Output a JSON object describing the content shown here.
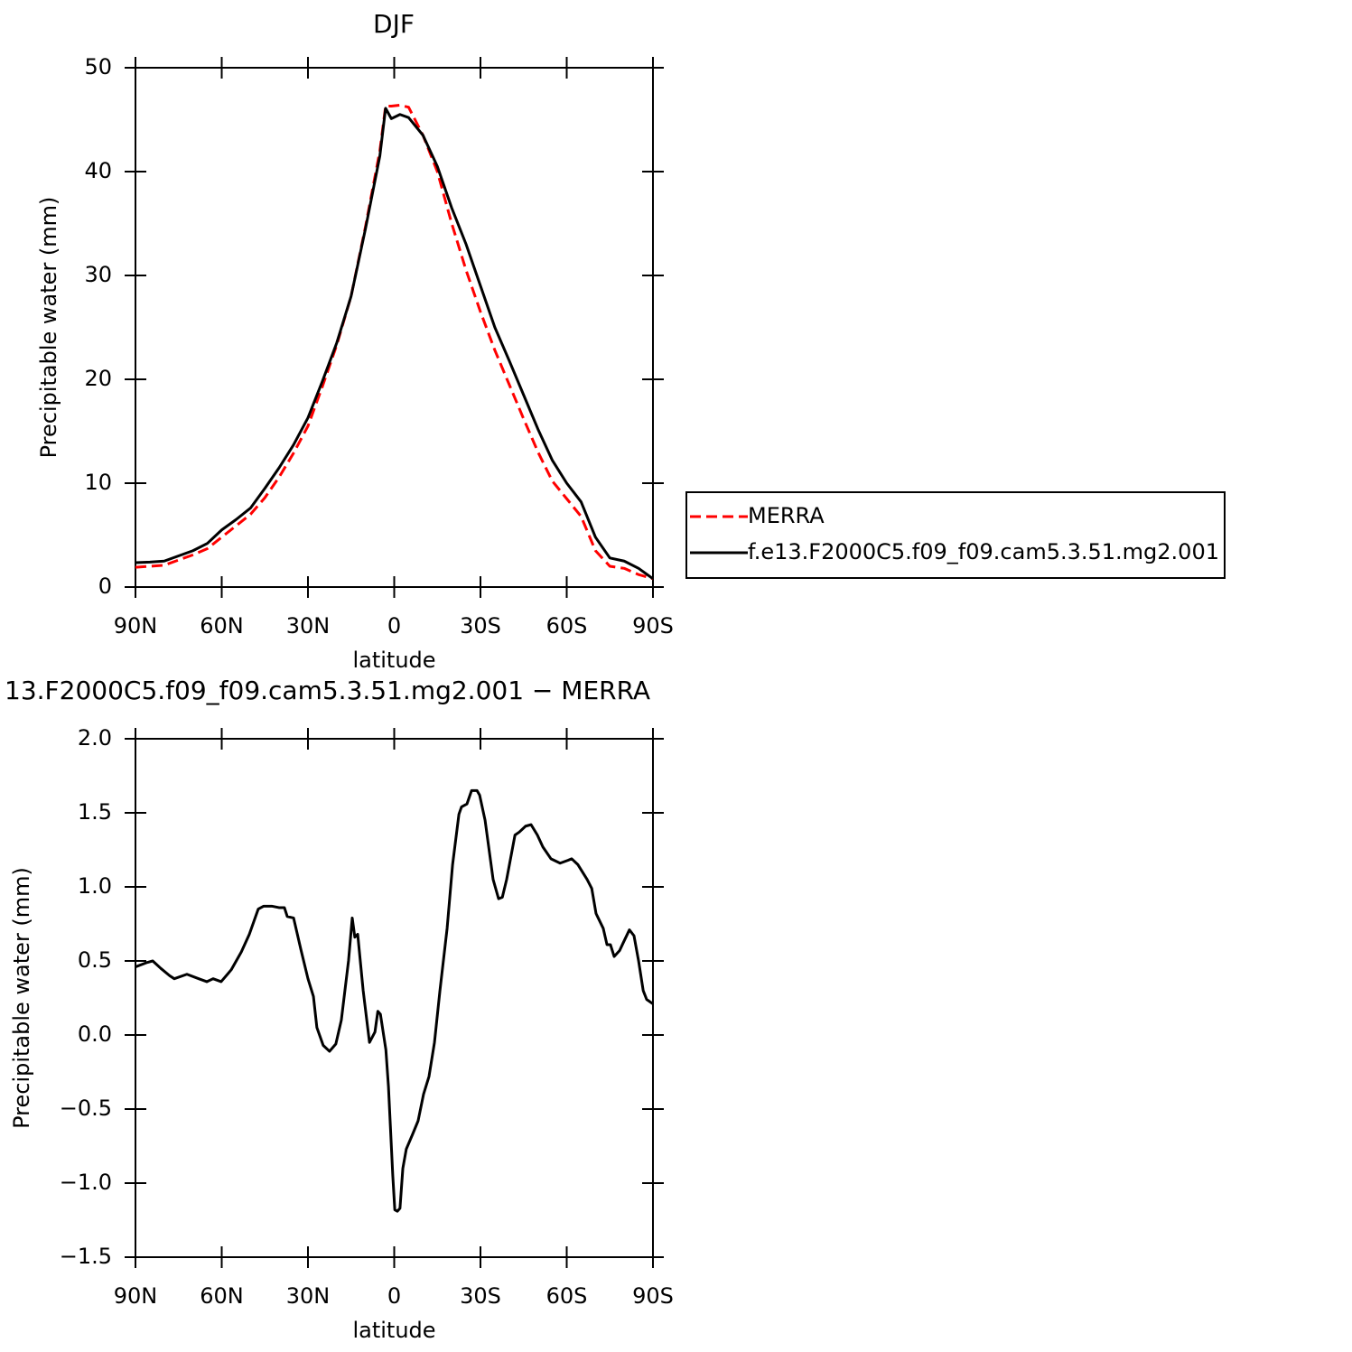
{
  "chart_data": [
    {
      "type": "line",
      "title": "DJF",
      "xlabel": "latitude",
      "ylabel": "Precipitable water (mm)",
      "x": [
        90,
        85,
        80,
        75,
        70,
        65,
        60,
        55,
        50,
        45,
        40,
        35,
        30,
        25,
        20,
        15,
        10,
        5,
        3,
        1,
        -2,
        -5,
        -10,
        -15,
        -20,
        -25,
        -30,
        -35,
        -40,
        -45,
        -50,
        -55,
        -60,
        -65,
        -70,
        -75,
        -80,
        -85,
        -90
      ],
      "series": [
        {
          "name": "MERRA",
          "color": "#ff0000",
          "dash": true,
          "values": [
            1.9,
            2.0,
            2.1,
            2.6,
            3.1,
            3.7,
            4.8,
            5.9,
            7.0,
            8.6,
            10.6,
            12.9,
            15.5,
            19.3,
            23.3,
            28,
            34.7,
            42,
            46.3,
            46.3,
            46.4,
            46.2,
            43.5,
            40,
            35,
            30.5,
            26.5,
            22.8,
            19.5,
            16.2,
            13,
            10.2,
            8.5,
            6.8,
            3.5,
            2.0,
            1.8,
            1.2,
            0.8
          ]
        },
        {
          "name": "f.e13.F2000C5.f09_f09.cam5.3.51.mg2.001",
          "color": "#000000",
          "dash": false,
          "values": [
            2.35,
            2.4,
            2.5,
            3.0,
            3.5,
            4.2,
            5.5,
            6.5,
            7.6,
            9.5,
            11.5,
            13.7,
            16.3,
            19.8,
            23.5,
            28,
            34.5,
            41.5,
            46.1,
            45.1,
            45.5,
            45.2,
            43.5,
            40.5,
            36.5,
            33,
            29,
            25,
            21.8,
            18.5,
            15.2,
            12.2,
            10,
            8.2,
            4.8,
            2.8,
            2.5,
            1.8,
            0.8
          ]
        }
      ],
      "xlim": [
        90,
        -90
      ],
      "xticks": [
        {
          "value": 90,
          "label": "90N"
        },
        {
          "value": 60,
          "label": "60N"
        },
        {
          "value": 30,
          "label": "30N"
        },
        0,
        {
          "value": -30,
          "label": "30S"
        },
        {
          "value": -60,
          "label": "60S"
        },
        {
          "value": -90,
          "label": "90S"
        }
      ],
      "ylim": [
        0,
        50
      ],
      "yticks": [
        0,
        10,
        20,
        30,
        40,
        50
      ],
      "legend": "right"
    },
    {
      "type": "line",
      "title": "13.F2000C5.f09_f09.cam5.3.51.mg2.001 − MERRA",
      "xlabel": "latitude",
      "ylabel": "Precipitable water (mm)",
      "x": [
        90,
        85.9,
        84.0,
        81.2,
        78.1,
        76.5,
        72.1,
        68.0,
        65.2,
        63.0,
        60.2,
        56.7,
        53.2,
        50.4,
        47.3,
        45.4,
        42.6,
        40.1,
        38.2,
        37.2,
        35.0,
        32.5,
        30,
        28.1,
        26.9,
        24.7,
        22.5,
        20.3,
        18.4,
        15.9,
        14.6,
        13.7,
        12.7,
        10.8,
        8.6,
        6.7,
        5.7,
        4.8,
        2.9,
        2.0,
        0.5,
        -0.2,
        -1.1,
        -2.0,
        -3.0,
        -4.2,
        -6.4,
        -8.3,
        -10.2,
        -12.1,
        -14.0,
        -15.9,
        -18.4,
        -20.3,
        -22.5,
        -23.4,
        -25.3,
        -26.9,
        -28.8,
        -29.7,
        -31.6,
        -34.4,
        -36.3,
        -37.6,
        -39.1,
        -42.0,
        -43.5,
        -45.7,
        -47.6,
        -49.8,
        -51.7,
        -54.5,
        -57.7,
        -60.5,
        -61.7,
        -63.9,
        -67.1,
        -68.7,
        -70.2,
        -72.7,
        -74.0,
        -75.2,
        -76.5,
        -78.4,
        -79.6,
        -81.8,
        -83.4,
        -85.0,
        -86.6,
        -87.8,
        -90
      ],
      "series": [
        {
          "name": null,
          "color": "#000000",
          "dash": false,
          "values": [
            0.46,
            0.49,
            0.5,
            0.45,
            0.4,
            0.38,
            0.41,
            0.38,
            0.36,
            0.38,
            0.36,
            0.44,
            0.56,
            0.68,
            0.85,
            0.87,
            0.87,
            0.86,
            0.86,
            0.8,
            0.79,
            0.58,
            0.38,
            0.26,
            0.05,
            -0.07,
            -0.11,
            -0.06,
            0.1,
            0.5,
            0.79,
            0.66,
            0.68,
            0.3,
            -0.05,
            0.02,
            0.16,
            0.14,
            -0.1,
            -0.35,
            -0.95,
            -1.18,
            -1.19,
            -1.17,
            -0.9,
            -0.77,
            -0.67,
            -0.58,
            -0.4,
            -0.28,
            -0.05,
            0.3,
            0.72,
            1.15,
            1.49,
            1.54,
            1.56,
            1.65,
            1.65,
            1.62,
            1.45,
            1.05,
            0.92,
            0.93,
            1.05,
            1.35,
            1.37,
            1.41,
            1.42,
            1.35,
            1.27,
            1.19,
            1.16,
            1.18,
            1.19,
            1.15,
            1.05,
            0.99,
            0.82,
            0.72,
            0.61,
            0.61,
            0.53,
            0.57,
            0.62,
            0.71,
            0.67,
            0.5,
            0.3,
            0.24,
            0.21
          ]
        }
      ],
      "xlim": [
        90,
        -90
      ],
      "xticks": [
        {
          "value": 90,
          "label": "90N"
        },
        {
          "value": 60,
          "label": "60N"
        },
        {
          "value": 30,
          "label": "30N"
        },
        0,
        {
          "value": -30,
          "label": "30S"
        },
        {
          "value": -60,
          "label": "60S"
        },
        {
          "value": -90,
          "label": "90S"
        }
      ],
      "ylim": [
        -1.5,
        2.0
      ],
      "yticks": [
        {
          "value": -1.5,
          "label": "−1.5"
        },
        {
          "value": -1.0,
          "label": "−1.0"
        },
        {
          "value": -0.5,
          "label": "−0.5"
        },
        {
          "value": 0,
          "label": "0.0"
        },
        0.5,
        {
          "value": 1,
          "label": "1.0"
        },
        1.5,
        {
          "value": 2,
          "label": "2.0"
        }
      ]
    }
  ]
}
